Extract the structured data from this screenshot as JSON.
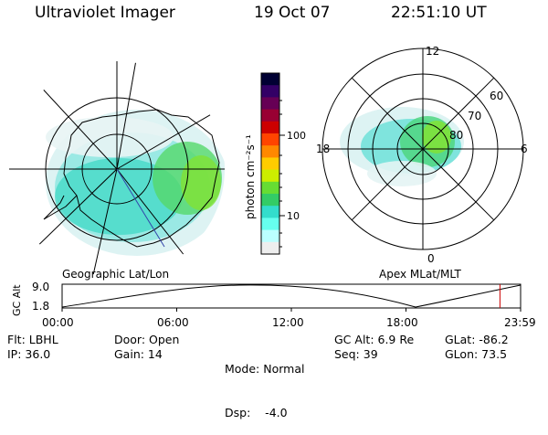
{
  "header": {
    "instrument": "Ultraviolet Imager",
    "date": "19 Oct 07",
    "time": "22:51:10 UT"
  },
  "left_panel": {
    "caption": "Geographic Lat/Lon"
  },
  "right_panel": {
    "caption": "Apex MLat/MLT",
    "mlt_labels": {
      "top": "12",
      "left": "18",
      "right": "6",
      "bottom": "0"
    },
    "lat_labels": [
      "60",
      "70",
      "80"
    ]
  },
  "colorbar": {
    "unit_label": "photon cm⁻²s⁻¹",
    "ticks": [
      "100",
      "10"
    ],
    "colors": [
      "#000033",
      "#330066",
      "#660055",
      "#990033",
      "#cc0000",
      "#ff4400",
      "#ff8800",
      "#ffcc00",
      "#ccee00",
      "#66dd33",
      "#33cc66",
      "#33ddcc",
      "#66ffee",
      "#bbffff",
      "#eeeeee"
    ]
  },
  "altitude_plot": {
    "y_label": "GC Alt",
    "y_ticks": [
      "9.0",
      "1.8"
    ],
    "x_ticks": [
      "00:00",
      "06:00",
      "12:00",
      "18:00",
      "23:59"
    ],
    "current_time_fraction": 0.955,
    "marker_color": "#cc0000"
  },
  "info": {
    "filter": "Flt: LBHL",
    "ip": "IP: 36.0",
    "door": "Door: Open",
    "gain": "Gain: 14",
    "mode": "Mode: Normal",
    "dsp": "Dsp:    -4.0",
    "gc_alt": "GC Alt: 6.9 Re",
    "seq": "Seq: 39",
    "glat": "GLat: -86.2",
    "glon": "GLon: 73.5"
  }
}
